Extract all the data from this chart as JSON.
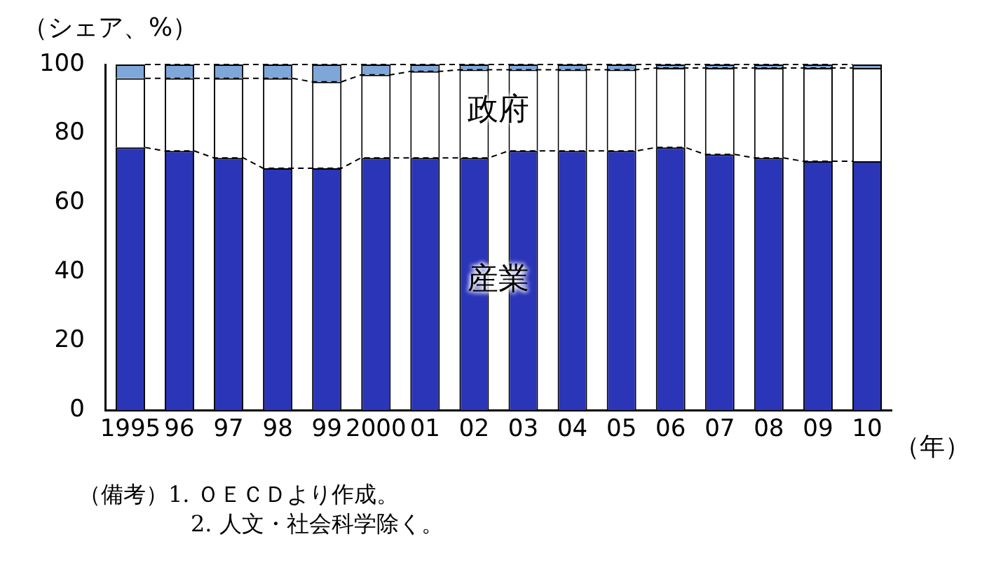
{
  "chart_data": {
    "type": "bar",
    "stacked": true,
    "xlabel": "（年）",
    "ylabel": "（シェア、%）",
    "categories": [
      "1995",
      "96",
      "97",
      "98",
      "99",
      "2000",
      "01",
      "02",
      "03",
      "04",
      "05",
      "06",
      "07",
      "08",
      "09",
      "10"
    ],
    "series": [
      {
        "name": "産業",
        "color": "#2b35b8",
        "values": [
          76,
          75,
          73,
          70,
          70,
          73,
          73,
          73,
          75,
          75,
          75,
          76,
          74,
          73,
          72,
          72
        ]
      },
      {
        "name": "政府",
        "color": "#ffffff",
        "values": [
          20,
          21,
          23,
          26,
          25,
          24,
          25,
          25.5,
          23.5,
          23.5,
          23.5,
          23,
          25,
          26,
          27,
          27
        ]
      },
      {
        "color": "#7fa6d8",
        "values": [
          4,
          4,
          4,
          4,
          5,
          3,
          2,
          1.5,
          1.5,
          1.5,
          1.5,
          1,
          1,
          1,
          1,
          1
        ]
      }
    ],
    "ylim": [
      0,
      100
    ],
    "yticks": [
      0,
      20,
      40,
      60,
      80,
      100
    ],
    "legend": false,
    "annotations": [
      "（備考）1. ＯＥＣＤより作成。",
      "2. 人文・社会科学除く。"
    ]
  }
}
